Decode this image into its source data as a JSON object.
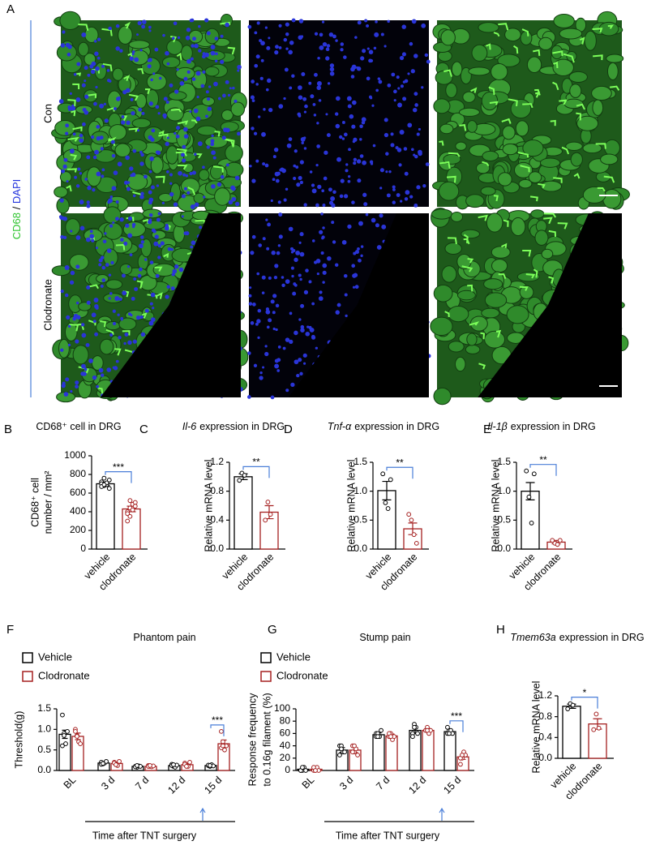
{
  "panel_a": {
    "label": "A",
    "stain_left": "CD68",
    "stain_sep": "/",
    "stain_right": "DAPI",
    "rows": [
      "Con",
      "Clodronate"
    ]
  },
  "chart_data": [
    {
      "type": "bar",
      "panel": "B",
      "title": "CD68⁺ cell in DRG",
      "ylabel": [
        "CD68⁺ cell",
        "number / mm²"
      ],
      "categories": [
        "vehicle",
        "clodronate"
      ],
      "values": [
        700,
        430
      ],
      "errors": [
        20,
        30
      ],
      "points": [
        [
          720,
          760,
          690,
          650,
          700,
          680,
          710,
          740,
          670,
          690
        ],
        [
          400,
          440,
          480,
          500,
          380,
          350,
          420,
          460,
          300,
          520
        ]
      ],
      "colors": [
        "#000000",
        "#a52020"
      ],
      "ylim": [
        0,
        1000
      ],
      "yticks": [
        0,
        200,
        400,
        600,
        800,
        1000
      ],
      "significance": "***"
    },
    {
      "type": "bar",
      "panel": "C",
      "title_italic": "Il-6",
      "title": "expression in DRG",
      "ylabel": [
        "Relative mRNA level"
      ],
      "categories": [
        "vehicle",
        "clodronate"
      ],
      "values": [
        1.0,
        0.51
      ],
      "errors": [
        0.04,
        0.09
      ],
      "points": [
        [
          0.95,
          1.05,
          1.02
        ],
        [
          0.4,
          0.65,
          0.48
        ]
      ],
      "colors": [
        "#000000",
        "#a52020"
      ],
      "ylim": [
        0,
        1.2
      ],
      "yticks": [
        {
          "value": 0,
          "label": "0.0"
        },
        0.4,
        0.8,
        1.2
      ],
      "significance": "**"
    },
    {
      "type": "bar",
      "panel": "D",
      "title_italic": "Tnf-α",
      "title": "expression in DRG",
      "ylabel": [
        "Relative mRNA level"
      ],
      "categories": [
        "vehicle",
        "clodronate"
      ],
      "values": [
        1.01,
        0.35
      ],
      "errors": [
        0.16,
        0.1
      ],
      "points": [
        [
          1.3,
          0.8,
          0.7,
          1.2
        ],
        [
          0.6,
          0.5,
          0.25,
          0.1
        ]
      ],
      "colors": [
        "#000000",
        "#a52020"
      ],
      "ylim": [
        0,
        1.5
      ],
      "yticks": [
        {
          "value": 0,
          "label": "0.0"
        },
        0.5,
        {
          "value": 1,
          "label": "1.0"
        },
        1.5
      ],
      "significance": "**"
    },
    {
      "type": "bar",
      "panel": "E",
      "title_italic": "Il-1β",
      "title": "expression in DRG",
      "ylabel": [
        "Relative mRNA level"
      ],
      "categories": [
        "vehicle",
        "clodronate"
      ],
      "values": [
        1.0,
        0.12
      ],
      "errors": [
        0.15,
        0.03
      ],
      "points": [
        [
          1.35,
          0.9,
          0.45,
          1.3
        ],
        [
          0.15,
          0.1,
          0.08,
          0.15
        ]
      ],
      "colors": [
        "#000000",
        "#a52020"
      ],
      "ylim": [
        0,
        1.5
      ],
      "yticks": [
        {
          "value": 0,
          "label": "0.0"
        },
        0.5,
        {
          "value": 1,
          "label": "1.0"
        },
        1.5
      ],
      "significance": "**"
    },
    {
      "type": "grouped_bar",
      "panel": "F",
      "title": "Phantom pain",
      "ylabel": [
        "Threshold(g)"
      ],
      "xlabel": "Time after TNT surgery",
      "categories": [
        "BL",
        "3 d",
        "7 d",
        "12 d",
        "15 d"
      ],
      "series": [
        {
          "name": "Vehicle",
          "color": "#000000",
          "values": [
            0.88,
            0.18,
            0.1,
            0.12,
            0.12
          ],
          "errors": [
            0.1,
            0.02,
            0.01,
            0.03,
            0.02
          ],
          "points": [
            [
              1.35,
              0.9,
              0.65,
              0.95,
              0.6,
              0.85
            ],
            [
              0.2,
              0.16,
              0.18,
              0.22,
              0.15,
              0.17
            ],
            [
              0.1,
              0.08,
              0.11,
              0.1,
              0.09,
              0.12
            ],
            [
              0.15,
              0.1,
              0.08,
              0.13,
              0.12,
              0.14
            ],
            [
              0.12,
              0.1,
              0.14,
              0.11,
              0.13,
              0.12
            ]
          ]
        },
        {
          "name": "Clodronate",
          "color": "#a52020",
          "values": [
            0.83,
            0.17,
            0.1,
            0.14,
            0.65
          ],
          "errors": [
            0.08,
            0.03,
            0.01,
            0.03,
            0.09
          ],
          "points": [
            [
              1.0,
              0.85,
              0.7,
              0.65,
              0.95,
              0.83
            ],
            [
              0.2,
              0.15,
              0.12,
              0.22,
              0.18,
              0.14
            ],
            [
              0.12,
              0.1,
              0.09,
              0.11,
              0.1,
              0.12
            ],
            [
              0.18,
              0.12,
              0.1,
              0.2,
              0.15,
              0.1
            ],
            [
              0.95,
              0.7,
              0.5,
              0.6,
              0.55,
              0.6
            ]
          ]
        }
      ],
      "ylim": [
        0,
        1.5
      ],
      "yticks": [
        {
          "value": 0,
          "label": "0.0"
        },
        0.5,
        {
          "value": 1,
          "label": "1.0"
        },
        1.5
      ],
      "significance": "***"
    },
    {
      "type": "grouped_bar",
      "panel": "G",
      "title": "Stump pain",
      "ylabel": [
        "Response frequency",
        "to 0.16g filament (%)"
      ],
      "xlabel": "Time after TNT surgery",
      "categories": [
        "BL",
        "3 d",
        "7 d",
        "12 d",
        "15 d"
      ],
      "series": [
        {
          "name": "Vehicle",
          "color": "#000000",
          "values": [
            2,
            33,
            58,
            65,
            63
          ],
          "errors": [
            2,
            4,
            3,
            5,
            3
          ],
          "points": [
            [
              0,
              0,
              5,
              0,
              0,
              5
            ],
            [
              40,
              40,
              30,
              30,
              25,
              35
            ],
            [
              60,
              60,
              55,
              65,
              55,
              55
            ],
            [
              60,
              75,
              70,
              60,
              55,
              70
            ],
            [
              60,
              65,
              65,
              60,
              70,
              60
            ]
          ]
        },
        {
          "name": "Clodronate",
          "color": "#a52020",
          "values": [
            2,
            33,
            56,
            65,
            22
          ],
          "errors": [
            2,
            4,
            3,
            3,
            4
          ],
          "points": [
            [
              0,
              0,
              5,
              0,
              5,
              0
            ],
            [
              40,
              30,
              35,
              25,
              30,
              40
            ],
            [
              55,
              60,
              50,
              55,
              60,
              55
            ],
            [
              65,
              70,
              60,
              65,
              65,
              65
            ],
            [
              10,
              20,
              30,
              25,
              20,
              25
            ]
          ]
        }
      ],
      "ylim": [
        0,
        100
      ],
      "yticks": [
        0,
        20,
        40,
        60,
        80,
        100
      ],
      "significance": "***"
    },
    {
      "type": "bar",
      "panel": "H",
      "title_italic": "Tmem63a",
      "title": "expression in DRG",
      "ylabel": [
        "Relative mRNA level"
      ],
      "categories": [
        "vehicle",
        "clodronate"
      ],
      "values": [
        1.0,
        0.66
      ],
      "errors": [
        0.04,
        0.1
      ],
      "points": [
        [
          0.95,
          1.05,
          1.02
        ],
        [
          0.55,
          0.85,
          0.58
        ]
      ],
      "colors": [
        "#000000",
        "#a52020"
      ],
      "ylim": [
        0,
        1.2
      ],
      "yticks": [
        {
          "value": 0,
          "label": "0.0"
        },
        0.4,
        0.8,
        1.2
      ],
      "significance": "*"
    }
  ]
}
